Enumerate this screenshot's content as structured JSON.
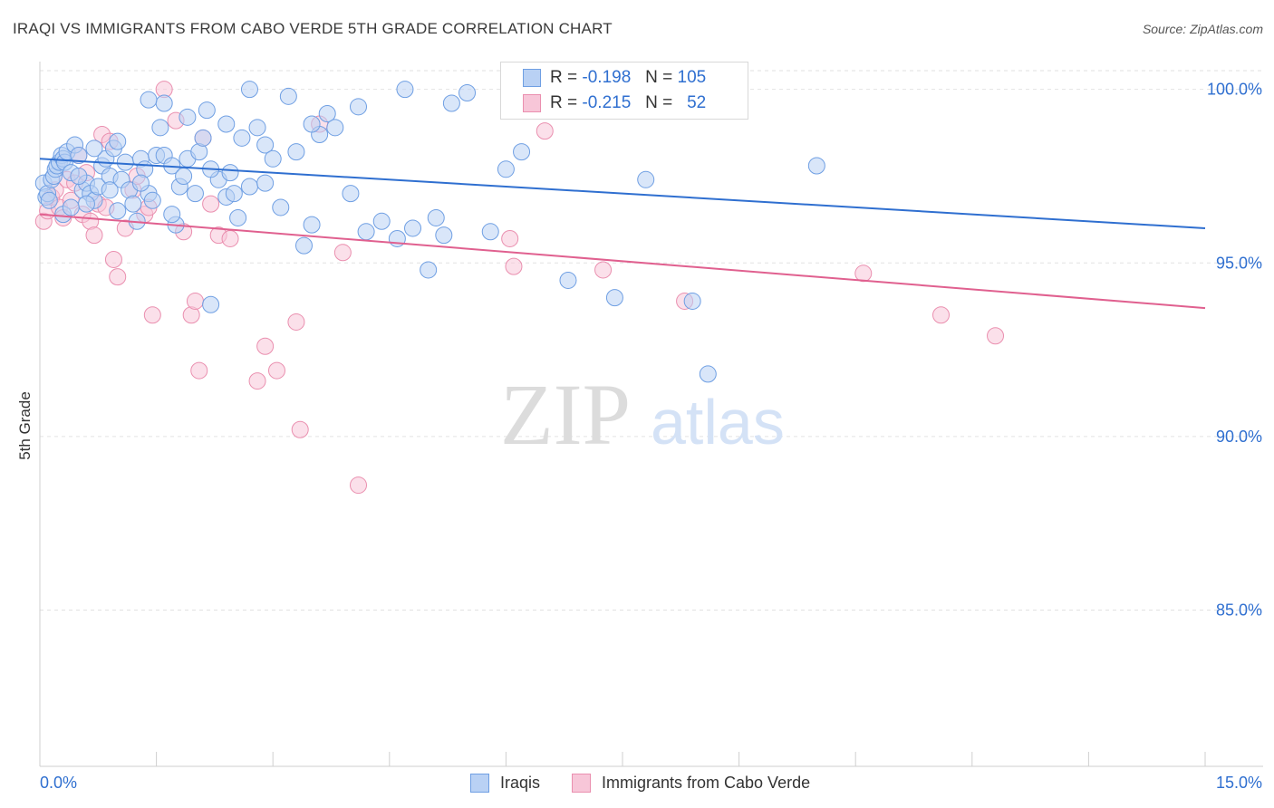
{
  "header": {
    "title": "IRAQI VS IMMIGRANTS FROM CABO VERDE 5TH GRADE CORRELATION CHART",
    "source": "Source: ZipAtlas.com"
  },
  "watermark": {
    "zip": "ZIP",
    "atlas": "atlas"
  },
  "legend": {
    "rows": [
      {
        "r_label": "R =",
        "r_value": "-0.198",
        "n_label": "N =",
        "n_value": "105"
      },
      {
        "r_label": "R =",
        "r_value": "-0.215",
        "n_label": "N =",
        "n_value": "52"
      }
    ]
  },
  "bottom_legend": {
    "series1": "Iraqis",
    "series2": "Immigrants from Cabo Verde"
  },
  "chart_data": {
    "type": "scatter",
    "title": "IRAQI VS IMMIGRANTS FROM CABO VERDE 5TH GRADE CORRELATION CHART",
    "ylabel": "5th Grade",
    "xlabel": "",
    "xlim": [
      0,
      15
    ],
    "ylim": [
      80.5,
      100.8
    ],
    "x_tick_labels": [
      "0.0%",
      "15.0%"
    ],
    "y_ticks": [
      100,
      95,
      90,
      85
    ],
    "y_tick_labels": [
      "100.0%",
      "95.0%",
      "90.0%",
      "85.0%"
    ],
    "grid": true,
    "legend_position": "top-center",
    "colors": {
      "series1": "#6f9fe3",
      "series1_fill": "#b9d1f4",
      "series1_line": "#2f6fd0",
      "series2": "#ea8faf",
      "series2_fill": "#f7c6d8",
      "series2_line": "#e0608f",
      "tick_label": "#2f6fd0"
    },
    "series": [
      {
        "name": "Iraqis",
        "R": -0.198,
        "N": 105,
        "trend": {
          "x": [
            0,
            15
          ],
          "y": [
            98.0,
            96.0
          ]
        },
        "points": [
          [
            0.05,
            97.3
          ],
          [
            0.08,
            96.9
          ],
          [
            0.1,
            97.0
          ],
          [
            0.12,
            96.8
          ],
          [
            0.15,
            97.4
          ],
          [
            0.18,
            97.5
          ],
          [
            0.2,
            97.7
          ],
          [
            0.22,
            97.8
          ],
          [
            0.25,
            97.9
          ],
          [
            0.28,
            98.1
          ],
          [
            0.3,
            98.0
          ],
          [
            0.32,
            97.9
          ],
          [
            0.35,
            98.2
          ],
          [
            0.4,
            97.6
          ],
          [
            0.45,
            98.4
          ],
          [
            0.5,
            98.1
          ],
          [
            0.55,
            97.1
          ],
          [
            0.6,
            97.3
          ],
          [
            0.65,
            97.0
          ],
          [
            0.7,
            96.8
          ],
          [
            0.75,
            97.2
          ],
          [
            0.8,
            97.8
          ],
          [
            0.85,
            98.0
          ],
          [
            0.9,
            97.5
          ],
          [
            0.95,
            98.3
          ],
          [
            1.0,
            98.5
          ],
          [
            1.05,
            97.4
          ],
          [
            1.1,
            97.9
          ],
          [
            1.15,
            97.1
          ],
          [
            1.2,
            96.7
          ],
          [
            1.25,
            96.2
          ],
          [
            1.3,
            98.0
          ],
          [
            1.35,
            97.7
          ],
          [
            1.4,
            97.0
          ],
          [
            1.45,
            96.8
          ],
          [
            1.5,
            98.1
          ],
          [
            1.55,
            98.9
          ],
          [
            1.6,
            98.1
          ],
          [
            1.7,
            97.8
          ],
          [
            1.75,
            96.1
          ],
          [
            1.8,
            97.2
          ],
          [
            1.85,
            97.5
          ],
          [
            1.9,
            98.0
          ],
          [
            2.0,
            97.0
          ],
          [
            2.05,
            98.2
          ],
          [
            2.1,
            98.6
          ],
          [
            2.15,
            99.4
          ],
          [
            2.2,
            93.8
          ],
          [
            2.3,
            97.4
          ],
          [
            2.4,
            96.9
          ],
          [
            2.45,
            97.6
          ],
          [
            2.5,
            97.0
          ],
          [
            2.55,
            96.3
          ],
          [
            2.6,
            98.6
          ],
          [
            2.7,
            97.2
          ],
          [
            2.8,
            98.9
          ],
          [
            2.9,
            98.4
          ],
          [
            3.0,
            98.0
          ],
          [
            3.1,
            96.6
          ],
          [
            3.2,
            99.8
          ],
          [
            3.3,
            98.2
          ],
          [
            3.4,
            95.5
          ],
          [
            3.5,
            96.1
          ],
          [
            3.6,
            98.7
          ],
          [
            3.7,
            99.3
          ],
          [
            4.0,
            97.0
          ],
          [
            4.2,
            95.9
          ],
          [
            4.4,
            96.2
          ],
          [
            4.6,
            95.7
          ],
          [
            4.8,
            96.0
          ],
          [
            5.0,
            94.8
          ],
          [
            5.1,
            96.3
          ],
          [
            5.2,
            95.8
          ],
          [
            5.3,
            99.6
          ],
          [
            5.5,
            99.9
          ],
          [
            5.8,
            95.9
          ],
          [
            6.0,
            97.7
          ],
          [
            6.2,
            98.2
          ],
          [
            6.5,
            100.0
          ],
          [
            6.8,
            94.5
          ],
          [
            7.4,
            94.0
          ],
          [
            7.8,
            97.4
          ],
          [
            8.4,
            93.9
          ],
          [
            8.6,
            91.8
          ],
          [
            10.0,
            97.8
          ],
          [
            1.6,
            99.6
          ],
          [
            1.9,
            99.2
          ],
          [
            2.4,
            99.0
          ],
          [
            2.7,
            100.0
          ],
          [
            3.5,
            99.0
          ],
          [
            4.1,
            99.5
          ],
          [
            4.7,
            100.0
          ],
          [
            1.4,
            99.7
          ],
          [
            0.9,
            97.1
          ],
          [
            0.6,
            96.7
          ],
          [
            1.0,
            96.5
          ],
          [
            1.3,
            97.3
          ],
          [
            0.3,
            96.4
          ],
          [
            0.4,
            96.6
          ],
          [
            0.7,
            98.3
          ],
          [
            0.5,
            97.5
          ],
          [
            3.8,
            98.9
          ],
          [
            2.2,
            97.7
          ],
          [
            1.7,
            96.4
          ],
          [
            2.9,
            97.3
          ]
        ]
      },
      {
        "name": "Immigrants from Cabo Verde",
        "R": -0.215,
        "N": 52,
        "trend": {
          "x": [
            0,
            15
          ],
          "y": [
            96.4,
            93.7
          ]
        },
        "points": [
          [
            0.05,
            96.2
          ],
          [
            0.1,
            96.5
          ],
          [
            0.15,
            96.9
          ],
          [
            0.2,
            97.1
          ],
          [
            0.25,
            96.6
          ],
          [
            0.3,
            96.3
          ],
          [
            0.35,
            97.4
          ],
          [
            0.45,
            97.3
          ],
          [
            0.5,
            98.1
          ],
          [
            0.55,
            96.4
          ],
          [
            0.6,
            97.6
          ],
          [
            0.65,
            96.2
          ],
          [
            0.7,
            95.8
          ],
          [
            0.75,
            96.7
          ],
          [
            0.8,
            98.7
          ],
          [
            0.9,
            98.5
          ],
          [
            0.95,
            95.1
          ],
          [
            1.0,
            94.6
          ],
          [
            1.1,
            96.0
          ],
          [
            1.2,
            97.1
          ],
          [
            1.25,
            97.5
          ],
          [
            1.35,
            96.4
          ],
          [
            1.45,
            93.5
          ],
          [
            1.6,
            100.0
          ],
          [
            1.75,
            99.1
          ],
          [
            1.85,
            95.9
          ],
          [
            1.95,
            93.5
          ],
          [
            2.0,
            93.9
          ],
          [
            2.05,
            91.9
          ],
          [
            2.1,
            98.6
          ],
          [
            2.2,
            96.7
          ],
          [
            2.3,
            95.8
          ],
          [
            2.45,
            95.7
          ],
          [
            2.8,
            91.6
          ],
          [
            2.9,
            92.6
          ],
          [
            3.05,
            91.9
          ],
          [
            3.3,
            93.3
          ],
          [
            3.35,
            90.2
          ],
          [
            3.6,
            99.0
          ],
          [
            3.9,
            95.3
          ],
          [
            4.1,
            88.6
          ],
          [
            6.05,
            95.7
          ],
          [
            6.1,
            94.9
          ],
          [
            6.5,
            98.8
          ],
          [
            7.25,
            94.8
          ],
          [
            8.3,
            93.9
          ],
          [
            10.6,
            94.7
          ],
          [
            11.6,
            93.5
          ],
          [
            12.3,
            92.9
          ],
          [
            0.4,
            96.8
          ],
          [
            0.85,
            96.6
          ],
          [
            1.4,
            96.6
          ]
        ]
      }
    ]
  }
}
